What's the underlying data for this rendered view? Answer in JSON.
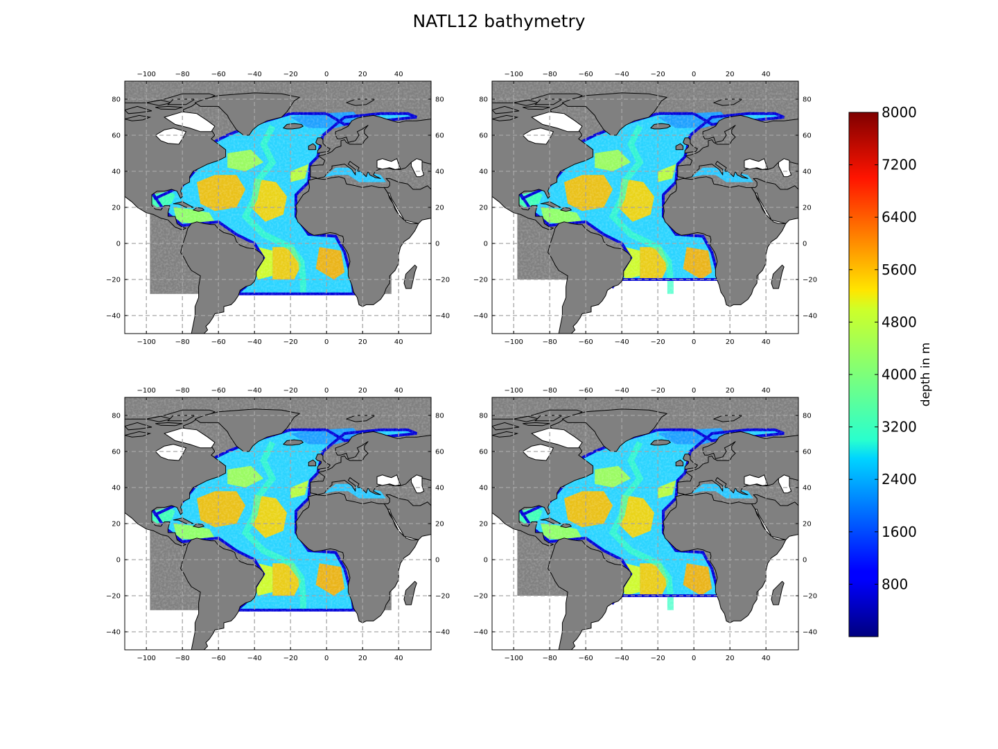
{
  "title": "NATL12 bathymetry",
  "map": {
    "lon_range": [
      -112,
      58
    ],
    "lat_range": [
      -50,
      90
    ],
    "lon_ticks": [
      -100,
      -80,
      -60,
      -40,
      -20,
      0,
      20,
      40
    ],
    "lat_ticks": [
      -40,
      -20,
      0,
      20,
      40,
      60,
      80
    ],
    "grid": true,
    "grid_style": "dashed",
    "land_color": "#808080",
    "ocean_colormap": "jet",
    "domain_south_lat": [
      -28,
      -20,
      -28,
      -20
    ]
  },
  "colorbar": {
    "label": "depth in m",
    "vmin": 0,
    "vmax": 8000,
    "ticks": [
      800,
      1600,
      2400,
      3200,
      4000,
      4800,
      5600,
      6400,
      7200,
      8000
    ],
    "colormap": "jet"
  },
  "panels": [
    {
      "id": "top-left"
    },
    {
      "id": "top-right"
    },
    {
      "id": "bottom-left"
    },
    {
      "id": "bottom-right"
    }
  ]
}
